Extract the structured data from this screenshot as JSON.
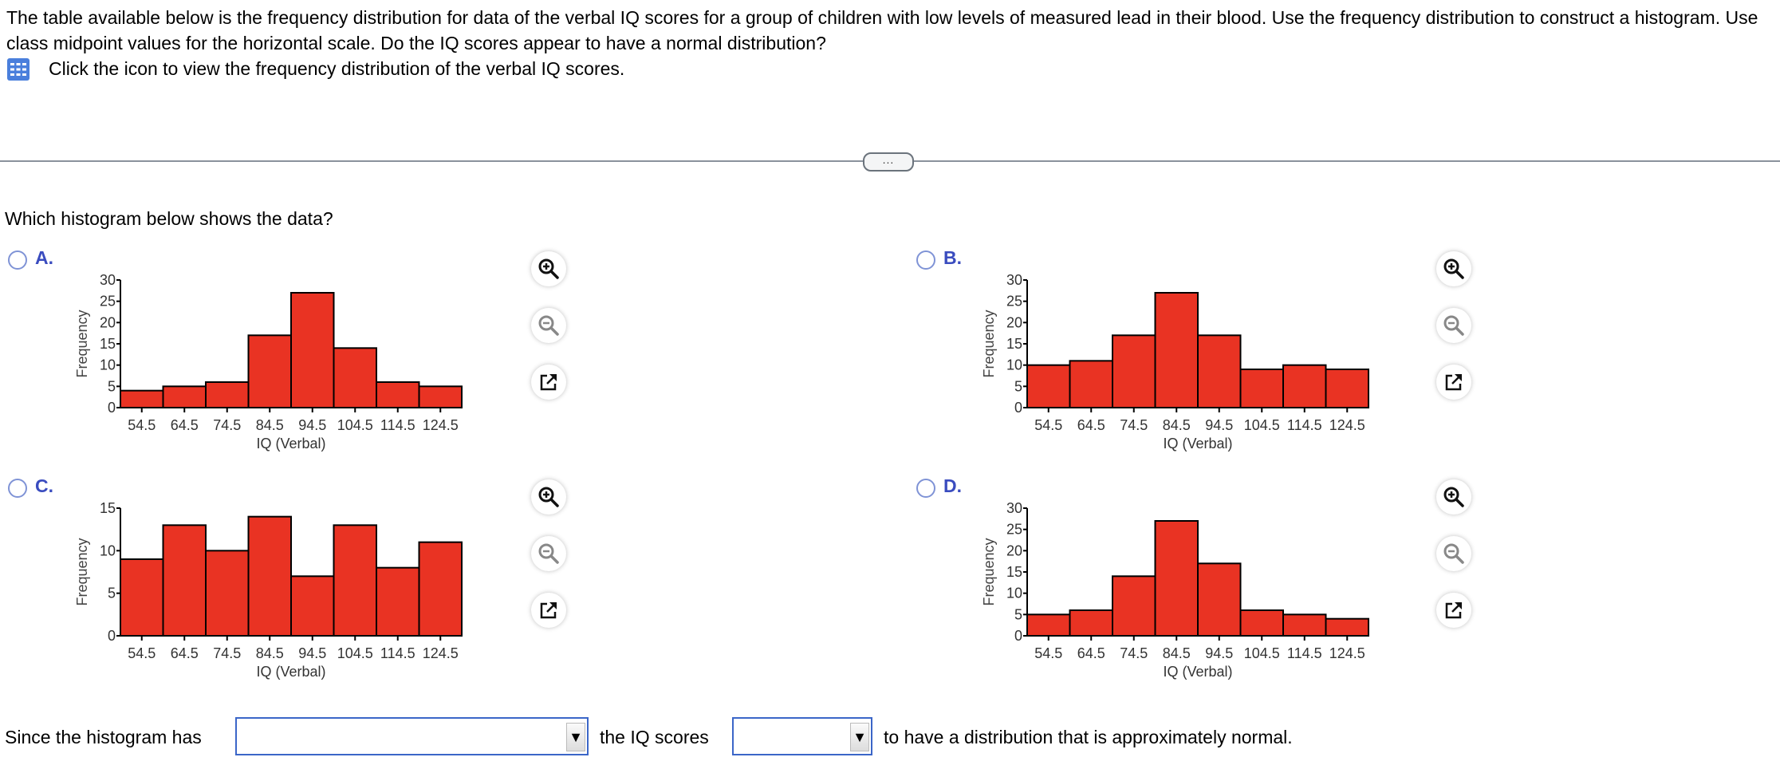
{
  "question": {
    "line1": "The table available below is the frequency distribution for data of the verbal IQ scores for a group of children with low levels of measured lead in their blood. Use the frequency distribution to construct a histogram. Use class midpoint values for the horizontal scale. Do the IQ scores appear to have a normal distribution?",
    "table_link": "Click the icon to view the frequency distribution of the verbal IQ scores.",
    "table_icon": "table-grid-icon",
    "more_label": "...",
    "prompt": "Which histogram below shows the data?"
  },
  "options": [
    {
      "letter": "A."
    },
    {
      "letter": "B."
    },
    {
      "letter": "C."
    },
    {
      "letter": "D."
    }
  ],
  "tools": {
    "zoom_in": "zoom-in-icon",
    "zoom_out": "zoom-out-icon",
    "expand": "external-link-icon"
  },
  "colors": {
    "bar": "#e93323",
    "accent": "#3a4cbf",
    "select_border": "#3b66c8"
  },
  "chart_data": [
    {
      "type": "bar",
      "option": "A",
      "categories": [
        "54.5",
        "64.5",
        "74.5",
        "84.5",
        "94.5",
        "104.5",
        "114.5",
        "124.5"
      ],
      "values": [
        4,
        5,
        6,
        17,
        27,
        14,
        6,
        5
      ],
      "xlabel": "IQ (Verbal)",
      "ylabel": "Frequency",
      "ylim": [
        0,
        30
      ],
      "yticks": [
        "0",
        "5",
        "10",
        "15",
        "20",
        "25",
        "30"
      ]
    },
    {
      "type": "bar",
      "option": "B",
      "categories": [
        "54.5",
        "64.5",
        "74.5",
        "84.5",
        "94.5",
        "104.5",
        "114.5",
        "124.5"
      ],
      "values": [
        10,
        11,
        17,
        27,
        17,
        9,
        10,
        9
      ],
      "xlabel": "IQ (Verbal)",
      "ylabel": "Frequency",
      "ylim": [
        0,
        30
      ],
      "yticks": [
        "0",
        "5",
        "10",
        "15",
        "20",
        "25",
        "30"
      ]
    },
    {
      "type": "bar",
      "option": "C",
      "categories": [
        "54.5",
        "64.5",
        "74.5",
        "84.5",
        "94.5",
        "104.5",
        "114.5",
        "124.5"
      ],
      "values": [
        9,
        13,
        10,
        14,
        7,
        13,
        8,
        11
      ],
      "xlabel": "IQ (Verbal)",
      "ylabel": "Frequency",
      "ylim": [
        0,
        15
      ],
      "yticks": [
        "0",
        "5",
        "10",
        "15"
      ]
    },
    {
      "type": "bar",
      "option": "D",
      "categories": [
        "54.5",
        "64.5",
        "74.5",
        "84.5",
        "94.5",
        "104.5",
        "114.5",
        "124.5"
      ],
      "values": [
        5,
        6,
        14,
        27,
        17,
        6,
        5,
        4
      ],
      "xlabel": "IQ (Verbal)",
      "ylabel": "Frequency",
      "ylim": [
        0,
        30
      ],
      "yticks": [
        "0",
        "5",
        "10",
        "15",
        "20",
        "25",
        "30"
      ]
    }
  ],
  "answer": {
    "part1": "Since the histogram has",
    "select1_value": "",
    "part2": "the IQ scores",
    "select2_value": "",
    "part3": "to have a distribution that is approximately normal."
  }
}
